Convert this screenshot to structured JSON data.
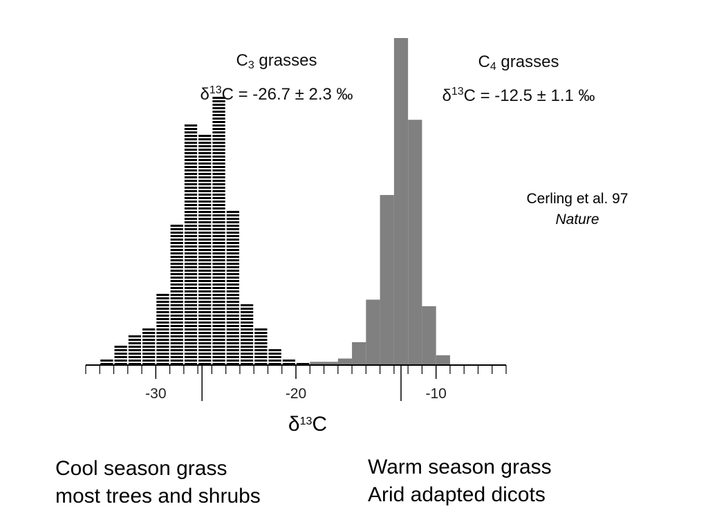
{
  "chart_data": {
    "type": "bar",
    "xlabel_symbol": "δ",
    "xlabel_sup": "13",
    "xlabel_base": "C",
    "xlim": [
      -35,
      -5
    ],
    "ylim": [
      0,
      10
    ],
    "xticks": [
      -30,
      -20,
      -10
    ],
    "bin_width": 1,
    "series": [
      {
        "name": "C3 grasses",
        "color": "#000000",
        "fill": "hatched",
        "bin_starts": [
          -34,
          -33,
          -32,
          -31,
          -30,
          -29,
          -28,
          -27,
          -26,
          -25,
          -24,
          -23,
          -22,
          -21,
          -20,
          -19
        ],
        "values": [
          0.2,
          0.6,
          0.9,
          1.2,
          2.2,
          4.3,
          7.4,
          7.1,
          8.2,
          4.8,
          1.9,
          1.2,
          0.5,
          0.2,
          0.1,
          0.1
        ]
      },
      {
        "name": "C4 grasses",
        "color": "#808080",
        "fill": "solid",
        "bin_starts": [
          -19,
          -18,
          -17,
          -16,
          -15,
          -14,
          -13,
          -12,
          -11,
          -10
        ],
        "values": [
          0.1,
          0.1,
          0.2,
          0.7,
          2.0,
          5.2,
          10.0,
          7.5,
          1.8,
          0.3
        ]
      }
    ],
    "markers": [
      -26.7,
      -12.5
    ]
  },
  "annotations": {
    "c3": {
      "base": "C",
      "sub": "3",
      "title_rest": " grasses",
      "delta": "δ",
      "sup": "13",
      "stat_rest": "C = -26.7 ± 2.3 ‰"
    },
    "c4": {
      "base": "C",
      "sub": "4",
      "title_rest": " grasses",
      "delta": "δ",
      "sup": "13",
      "stat_rest": "C = -12.5 ± 1.1 ‰"
    },
    "citation": {
      "authors": "Cerling et al. 97",
      "journal": "Nature"
    }
  },
  "groups": {
    "left": {
      "line1": "Cool season grass",
      "line2": "most trees and shrubs"
    },
    "right": {
      "line1": "Warm season grass",
      "line2": "Arid adapted dicots"
    }
  }
}
